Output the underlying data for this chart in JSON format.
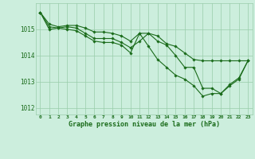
{
  "xlabel": "Graphe pression niveau de la mer (hPa)",
  "hours": [
    0,
    1,
    2,
    3,
    4,
    5,
    6,
    7,
    8,
    9,
    10,
    11,
    12,
    13,
    14,
    15,
    16,
    17,
    18,
    19,
    20,
    21,
    22,
    23
  ],
  "line1": [
    1015.65,
    1015.2,
    1015.1,
    1015.15,
    1015.15,
    1015.05,
    1014.9,
    1014.9,
    1014.85,
    1014.75,
    1014.55,
    1014.85,
    1014.85,
    1014.75,
    1014.45,
    1014.35,
    1014.1,
    1013.85,
    1013.8,
    1013.8,
    1013.8,
    1013.8,
    1013.8,
    1013.8
  ],
  "line2": [
    1015.65,
    1015.1,
    1015.05,
    1015.1,
    1015.05,
    1014.85,
    1014.65,
    1014.65,
    1014.65,
    1014.5,
    1014.3,
    1014.55,
    1014.85,
    1014.55,
    1014.4,
    1014.0,
    1013.55,
    1013.55,
    1012.75,
    1012.75,
    1012.55,
    1012.9,
    1013.15,
    1013.8
  ],
  "line3": [
    1015.65,
    1015.0,
    1015.05,
    1015.0,
    1014.95,
    1014.75,
    1014.55,
    1014.5,
    1014.5,
    1014.4,
    1014.1,
    1014.85,
    1014.35,
    1013.85,
    1013.55,
    1013.25,
    1013.1,
    1012.85,
    1012.45,
    1012.55,
    1012.55,
    1012.85,
    1013.1,
    1013.8
  ],
  "line_color": "#1a6b1a",
  "bg_color": "#cceedd",
  "grid_color": "#99ccaa",
  "tick_color": "#1a6b1a",
  "label_color": "#1a6b1a",
  "ylim": [
    1011.75,
    1016.0
  ],
  "yticks": [
    1012,
    1013,
    1014,
    1015
  ],
  "marker": "D",
  "marker_size": 1.8,
  "line_width": 0.8
}
